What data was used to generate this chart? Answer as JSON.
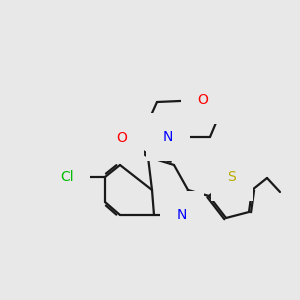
{
  "bg_color": "#e8e8e8",
  "bond_color": "#1a1a1a",
  "bond_width": 1.6,
  "atom_colors": {
    "N": "#0000ff",
    "O": "#ff0000",
    "S": "#bbaa00",
    "Cl": "#00bb00",
    "C": "#1a1a1a"
  },
  "figsize": [
    3.0,
    3.0
  ],
  "dpi": 100,
  "xlim": [
    0,
    10
  ],
  "ylim": [
    0,
    10
  ]
}
